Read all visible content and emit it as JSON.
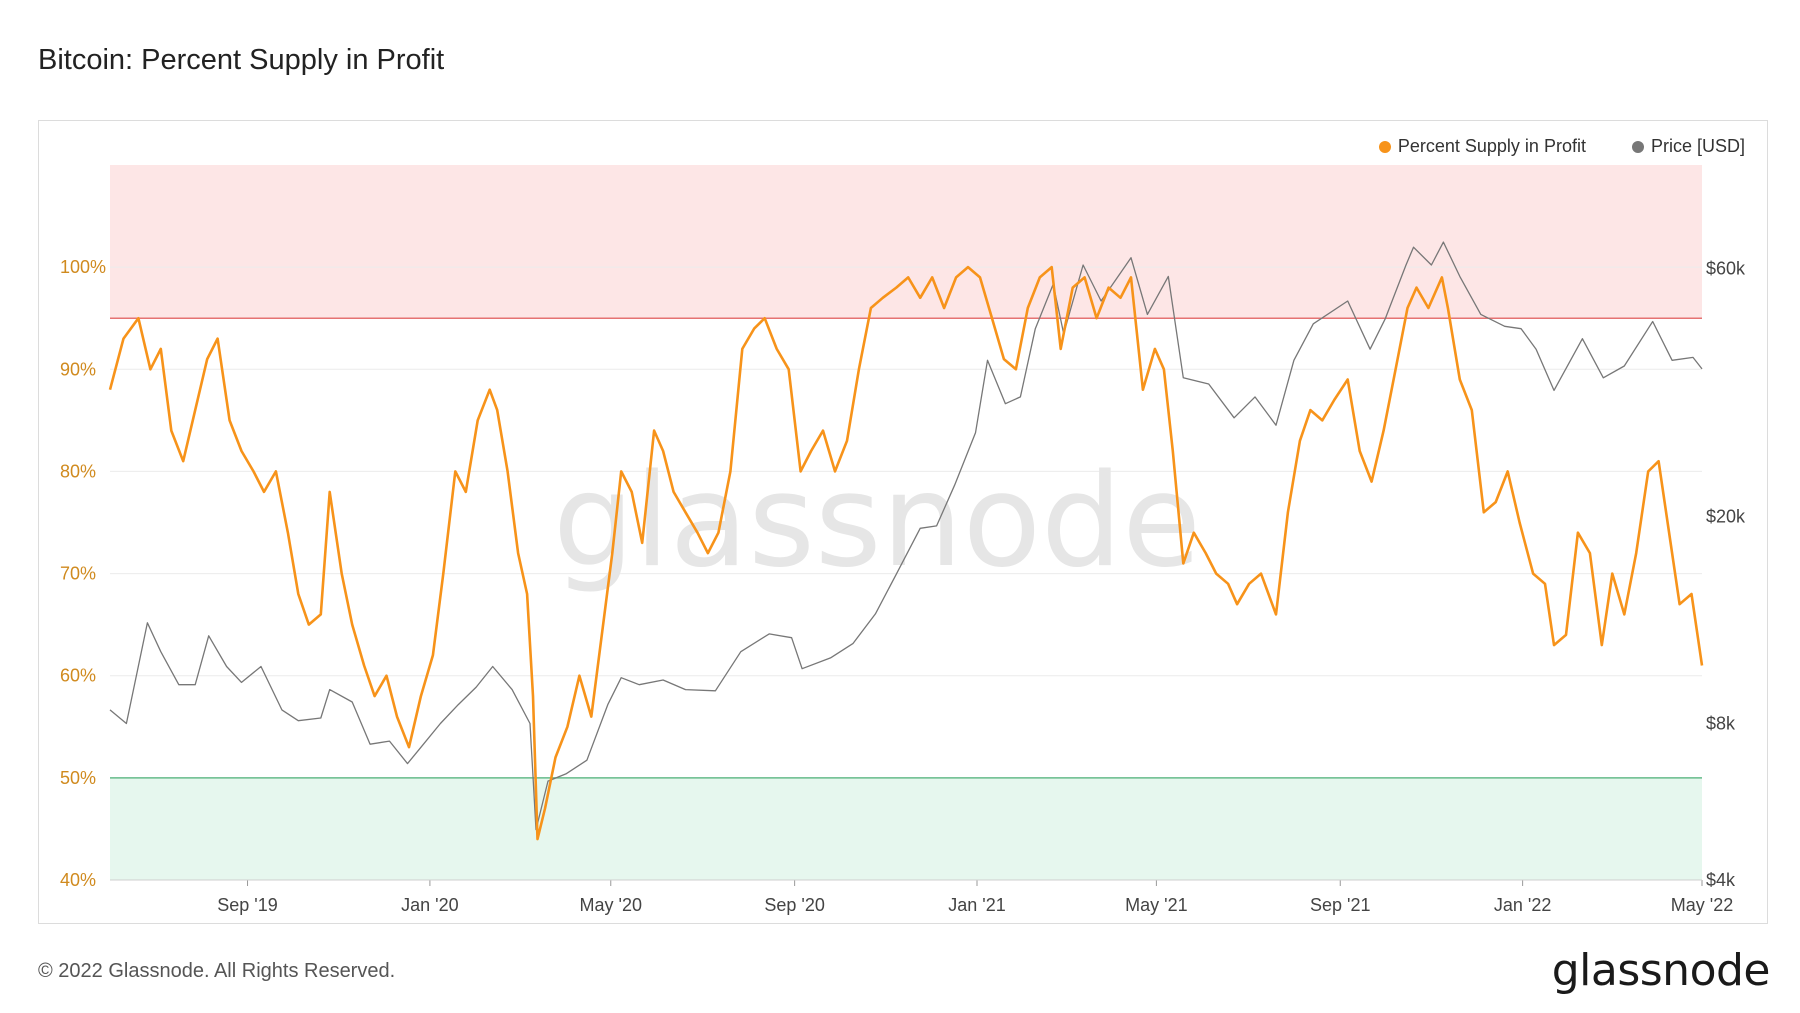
{
  "title": "Bitcoin: Percent Supply in Profit",
  "footer": {
    "copyright": "© 2022 Glassnode. All Rights Reserved.",
    "logo": "glassnode"
  },
  "watermark": "glassnode",
  "colors": {
    "profit": "#f7931a",
    "price": "#777777",
    "upper_zone": "#fde6e6",
    "lower_zone": "#e6f7ee",
    "upper_line": "#e57373",
    "lower_line": "#66bb8a"
  },
  "chart_data": {
    "type": "line",
    "title": "Bitcoin: Percent Supply in Profit",
    "x_range": [
      "2019-06-01",
      "2022-05-01"
    ],
    "x_ticks": [
      {
        "date": "2019-09-01",
        "label": "Sep '19"
      },
      {
        "date": "2020-01-01",
        "label": "Jan '20"
      },
      {
        "date": "2020-05-01",
        "label": "May '20"
      },
      {
        "date": "2020-09-01",
        "label": "Sep '20"
      },
      {
        "date": "2021-01-01",
        "label": "Jan '21"
      },
      {
        "date": "2021-05-01",
        "label": "May '21"
      },
      {
        "date": "2021-09-01",
        "label": "Sep '21"
      },
      {
        "date": "2022-01-01",
        "label": "Jan '22"
      },
      {
        "date": "2022-05-01",
        "label": "May '22"
      }
    ],
    "left_axis": {
      "ticks": [
        "40%",
        "50%",
        "60%",
        "70%",
        "80%",
        "90%",
        "100%"
      ],
      "values": [
        40,
        50,
        60,
        70,
        80,
        90,
        100
      ],
      "range": [
        40,
        110
      ]
    },
    "right_axis": {
      "scale": "log",
      "ticks": [
        "$4k",
        "$8k",
        "$20k",
        "$60k"
      ],
      "values": [
        4000,
        8000,
        20000,
        60000
      ],
      "range": [
        4000,
        95000
      ]
    },
    "zones": {
      "upper_threshold": 95,
      "lower_threshold": 50
    },
    "legend_position": "top-right",
    "series": [
      {
        "name": "Percent Supply in Profit",
        "axis": "left",
        "color": "#f7931a",
        "points": [
          [
            "2019-06-01",
            88
          ],
          [
            "2019-06-10",
            93
          ],
          [
            "2019-06-20",
            95
          ],
          [
            "2019-06-28",
            90
          ],
          [
            "2019-07-05",
            92
          ],
          [
            "2019-07-12",
            84
          ],
          [
            "2019-07-20",
            81
          ],
          [
            "2019-07-28",
            86
          ],
          [
            "2019-08-05",
            91
          ],
          [
            "2019-08-12",
            93
          ],
          [
            "2019-08-20",
            85
          ],
          [
            "2019-08-28",
            82
          ],
          [
            "2019-09-05",
            80
          ],
          [
            "2019-09-12",
            78
          ],
          [
            "2019-09-20",
            80
          ],
          [
            "2019-09-28",
            74
          ],
          [
            "2019-10-05",
            68
          ],
          [
            "2019-10-12",
            65
          ],
          [
            "2019-10-20",
            66
          ],
          [
            "2019-10-26",
            78
          ],
          [
            "2019-11-03",
            70
          ],
          [
            "2019-11-10",
            65
          ],
          [
            "2019-11-18",
            61
          ],
          [
            "2019-11-25",
            58
          ],
          [
            "2019-12-03",
            60
          ],
          [
            "2019-12-10",
            56
          ],
          [
            "2019-12-18",
            53
          ],
          [
            "2019-12-26",
            58
          ],
          [
            "2020-01-03",
            62
          ],
          [
            "2020-01-10",
            70
          ],
          [
            "2020-01-18",
            80
          ],
          [
            "2020-01-25",
            78
          ],
          [
            "2020-02-02",
            85
          ],
          [
            "2020-02-10",
            88
          ],
          [
            "2020-02-15",
            86
          ],
          [
            "2020-02-22",
            80
          ],
          [
            "2020-02-29",
            72
          ],
          [
            "2020-03-06",
            68
          ],
          [
            "2020-03-10",
            58
          ],
          [
            "2020-03-13",
            44
          ],
          [
            "2020-03-18",
            47
          ],
          [
            "2020-03-25",
            52
          ],
          [
            "2020-04-02",
            55
          ],
          [
            "2020-04-10",
            60
          ],
          [
            "2020-04-18",
            56
          ],
          [
            "2020-04-25",
            64
          ],
          [
            "2020-05-02",
            72
          ],
          [
            "2020-05-08",
            80
          ],
          [
            "2020-05-15",
            78
          ],
          [
            "2020-05-22",
            73
          ],
          [
            "2020-05-30",
            84
          ],
          [
            "2020-06-05",
            82
          ],
          [
            "2020-06-12",
            78
          ],
          [
            "2020-06-20",
            76
          ],
          [
            "2020-06-28",
            74
          ],
          [
            "2020-07-05",
            72
          ],
          [
            "2020-07-12",
            74
          ],
          [
            "2020-07-20",
            80
          ],
          [
            "2020-07-28",
            92
          ],
          [
            "2020-08-05",
            94
          ],
          [
            "2020-08-12",
            95
          ],
          [
            "2020-08-20",
            92
          ],
          [
            "2020-08-28",
            90
          ],
          [
            "2020-09-05",
            80
          ],
          [
            "2020-09-12",
            82
          ],
          [
            "2020-09-20",
            84
          ],
          [
            "2020-09-28",
            80
          ],
          [
            "2020-10-06",
            83
          ],
          [
            "2020-10-14",
            90
          ],
          [
            "2020-10-22",
            96
          ],
          [
            "2020-10-30",
            97
          ],
          [
            "2020-11-08",
            98
          ],
          [
            "2020-11-16",
            99
          ],
          [
            "2020-11-24",
            97
          ],
          [
            "2020-12-02",
            99
          ],
          [
            "2020-12-10",
            96
          ],
          [
            "2020-12-18",
            99
          ],
          [
            "2020-12-26",
            100
          ],
          [
            "2021-01-03",
            99
          ],
          [
            "2021-01-11",
            95
          ],
          [
            "2021-01-19",
            91
          ],
          [
            "2021-01-27",
            90
          ],
          [
            "2021-02-04",
            96
          ],
          [
            "2021-02-12",
            99
          ],
          [
            "2021-02-20",
            100
          ],
          [
            "2021-02-26",
            92
          ],
          [
            "2021-03-06",
            98
          ],
          [
            "2021-03-14",
            99
          ],
          [
            "2021-03-22",
            95
          ],
          [
            "2021-03-30",
            98
          ],
          [
            "2021-04-07",
            97
          ],
          [
            "2021-04-14",
            99
          ],
          [
            "2021-04-22",
            88
          ],
          [
            "2021-04-30",
            92
          ],
          [
            "2021-05-06",
            90
          ],
          [
            "2021-05-12",
            82
          ],
          [
            "2021-05-19",
            71
          ],
          [
            "2021-05-26",
            74
          ],
          [
            "2021-06-03",
            72
          ],
          [
            "2021-06-10",
            70
          ],
          [
            "2021-06-18",
            69
          ],
          [
            "2021-06-24",
            67
          ],
          [
            "2021-07-02",
            69
          ],
          [
            "2021-07-10",
            70
          ],
          [
            "2021-07-20",
            66
          ],
          [
            "2021-07-28",
            76
          ],
          [
            "2021-08-05",
            83
          ],
          [
            "2021-08-12",
            86
          ],
          [
            "2021-08-20",
            85
          ],
          [
            "2021-08-28",
            87
          ],
          [
            "2021-09-06",
            89
          ],
          [
            "2021-09-14",
            82
          ],
          [
            "2021-09-22",
            79
          ],
          [
            "2021-09-30",
            84
          ],
          [
            "2021-10-08",
            90
          ],
          [
            "2021-10-16",
            96
          ],
          [
            "2021-10-22",
            98
          ],
          [
            "2021-10-30",
            96
          ],
          [
            "2021-11-08",
            99
          ],
          [
            "2021-11-12",
            96
          ],
          [
            "2021-11-20",
            89
          ],
          [
            "2021-11-28",
            86
          ],
          [
            "2021-12-06",
            76
          ],
          [
            "2021-12-14",
            77
          ],
          [
            "2021-12-22",
            80
          ],
          [
            "2021-12-30",
            75
          ],
          [
            "2022-01-08",
            70
          ],
          [
            "2022-01-16",
            69
          ],
          [
            "2022-01-22",
            63
          ],
          [
            "2022-01-30",
            64
          ],
          [
            "2022-02-07",
            74
          ],
          [
            "2022-02-15",
            72
          ],
          [
            "2022-02-23",
            63
          ],
          [
            "2022-03-02",
            70
          ],
          [
            "2022-03-10",
            66
          ],
          [
            "2022-03-18",
            72
          ],
          [
            "2022-03-26",
            80
          ],
          [
            "2022-04-02",
            81
          ],
          [
            "2022-04-08",
            75
          ],
          [
            "2022-04-16",
            67
          ],
          [
            "2022-04-24",
            68
          ],
          [
            "2022-05-01",
            61
          ]
        ]
      },
      {
        "name": "Price [USD]",
        "axis": "right",
        "color": "#777777",
        "points": [
          [
            "2019-06-01",
            8500
          ],
          [
            "2019-06-12",
            8000
          ],
          [
            "2019-06-26",
            12500
          ],
          [
            "2019-07-05",
            11000
          ],
          [
            "2019-07-17",
            9500
          ],
          [
            "2019-07-28",
            9500
          ],
          [
            "2019-08-06",
            11800
          ],
          [
            "2019-08-18",
            10300
          ],
          [
            "2019-08-28",
            9600
          ],
          [
            "2019-09-10",
            10300
          ],
          [
            "2019-09-24",
            8500
          ],
          [
            "2019-10-05",
            8100
          ],
          [
            "2019-10-20",
            8200
          ],
          [
            "2019-10-26",
            9300
          ],
          [
            "2019-11-10",
            8800
          ],
          [
            "2019-11-22",
            7300
          ],
          [
            "2019-12-05",
            7400
          ],
          [
            "2019-12-17",
            6700
          ],
          [
            "2019-12-26",
            7200
          ],
          [
            "2020-01-08",
            8000
          ],
          [
            "2020-01-20",
            8700
          ],
          [
            "2020-02-01",
            9400
          ],
          [
            "2020-02-12",
            10300
          ],
          [
            "2020-02-25",
            9300
          ],
          [
            "2020-03-08",
            8000
          ],
          [
            "2020-03-12",
            5000
          ],
          [
            "2020-03-20",
            6200
          ],
          [
            "2020-04-01",
            6400
          ],
          [
            "2020-04-15",
            6800
          ],
          [
            "2020-04-29",
            8700
          ],
          [
            "2020-05-08",
            9800
          ],
          [
            "2020-05-20",
            9500
          ],
          [
            "2020-06-05",
            9700
          ],
          [
            "2020-06-20",
            9300
          ],
          [
            "2020-07-10",
            9250
          ],
          [
            "2020-07-27",
            11000
          ],
          [
            "2020-08-15",
            11900
          ],
          [
            "2020-08-30",
            11700
          ],
          [
            "2020-09-06",
            10200
          ],
          [
            "2020-09-25",
            10700
          ],
          [
            "2020-10-10",
            11400
          ],
          [
            "2020-10-25",
            13000
          ],
          [
            "2020-11-08",
            15500
          ],
          [
            "2020-11-24",
            19000
          ],
          [
            "2020-12-05",
            19200
          ],
          [
            "2020-12-17",
            23000
          ],
          [
            "2020-12-31",
            29000
          ],
          [
            "2021-01-08",
            40000
          ],
          [
            "2021-01-20",
            33000
          ],
          [
            "2021-01-30",
            34000
          ],
          [
            "2021-02-09",
            46000
          ],
          [
            "2021-02-21",
            56000
          ],
          [
            "2021-02-28",
            45000
          ],
          [
            "2021-03-13",
            61000
          ],
          [
            "2021-03-25",
            52000
          ],
          [
            "2021-04-14",
            63000
          ],
          [
            "2021-04-25",
            49000
          ],
          [
            "2021-05-09",
            58000
          ],
          [
            "2021-05-19",
            37000
          ],
          [
            "2021-06-05",
            36000
          ],
          [
            "2021-06-22",
            31000
          ],
          [
            "2021-07-06",
            34000
          ],
          [
            "2021-07-20",
            30000
          ],
          [
            "2021-08-01",
            40000
          ],
          [
            "2021-08-14",
            47000
          ],
          [
            "2021-09-06",
            52000
          ],
          [
            "2021-09-21",
            42000
          ],
          [
            "2021-10-01",
            48000
          ],
          [
            "2021-10-15",
            61000
          ],
          [
            "2021-10-20",
            66000
          ],
          [
            "2021-11-01",
            61000
          ],
          [
            "2021-11-09",
            67500
          ],
          [
            "2021-11-20",
            58000
          ],
          [
            "2021-12-04",
            49000
          ],
          [
            "2021-12-20",
            46500
          ],
          [
            "2021-12-31",
            46000
          ],
          [
            "2022-01-10",
            42000
          ],
          [
            "2022-01-22",
            35000
          ],
          [
            "2022-02-10",
            44000
          ],
          [
            "2022-02-24",
            37000
          ],
          [
            "2022-03-10",
            39000
          ],
          [
            "2022-03-29",
            47500
          ],
          [
            "2022-04-11",
            40000
          ],
          [
            "2022-04-25",
            40500
          ],
          [
            "2022-05-01",
            38500
          ]
        ]
      }
    ]
  }
}
